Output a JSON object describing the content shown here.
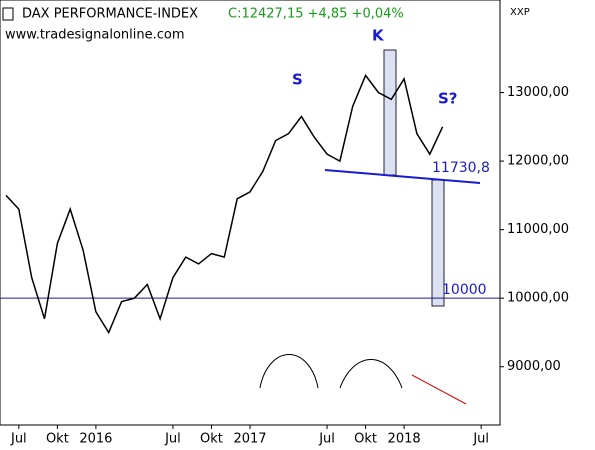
{
  "chart_data": {
    "type": "line",
    "title": "DAX PERFORMANCE-INDEX",
    "subtitle": "C:12427,15 +4,85 +0,04%",
    "source": "www.tradesignalonline.com",
    "corner_label": "XXP",
    "x": [
      "2015-06",
      "2015-07",
      "2015-08",
      "2015-09",
      "2015-10",
      "2015-11",
      "2015-12",
      "2016-01",
      "2016-02",
      "2016-03",
      "2016-04",
      "2016-05",
      "2016-06",
      "2016-07",
      "2016-08",
      "2016-09",
      "2016-10",
      "2016-11",
      "2016-12",
      "2017-01",
      "2017-02",
      "2017-03",
      "2017-04",
      "2017-05",
      "2017-06",
      "2017-07",
      "2017-08",
      "2017-09",
      "2017-10",
      "2017-11",
      "2017-12",
      "2018-01",
      "2018-02",
      "2018-03",
      "2018-04"
    ],
    "series": [
      {
        "name": "DAX",
        "color": "#000000",
        "values": [
          11500,
          11300,
          10300,
          9700,
          10800,
          11300,
          10700,
          9800,
          9500,
          9950,
          10000,
          10200,
          9700,
          10300,
          10600,
          10500,
          10650,
          10600,
          11450,
          11550,
          11850,
          12300,
          12400,
          12650,
          12350,
          12100,
          12000,
          12800,
          13250,
          13000,
          12900,
          13200,
          12400,
          12100,
          12500
        ]
      }
    ],
    "xlim": [
      "2015-06",
      "2018-08"
    ],
    "xticks": [
      {
        "value": "2015-07",
        "label": "Jul"
      },
      {
        "value": "2015-10",
        "label": "Okt"
      },
      {
        "value": "2016-01",
        "label": "2016"
      },
      {
        "value": "2016-07",
        "label": "Jul"
      },
      {
        "value": "2016-10",
        "label": "Okt"
      },
      {
        "value": "2017-01",
        "label": "2017"
      },
      {
        "value": "2017-07",
        "label": "Jul"
      },
      {
        "value": "2017-10",
        "label": "Okt"
      },
      {
        "value": "2018-01",
        "label": "2018"
      },
      {
        "value": "2018-07",
        "label": "Jul"
      }
    ],
    "ylim": [
      8150,
      14350
    ],
    "yticks": [
      {
        "value": 9000,
        "label": "9000,00"
      },
      {
        "value": 10000,
        "label": "10000,00"
      },
      {
        "value": 11000,
        "label": "11000,00"
      },
      {
        "value": 12000,
        "label": "12000,00"
      },
      {
        "value": 13000,
        "label": "13000,00"
      }
    ],
    "hline": 10000,
    "annotations": [
      "S",
      "K",
      "S?",
      "11730,8",
      "10000"
    ]
  }
}
